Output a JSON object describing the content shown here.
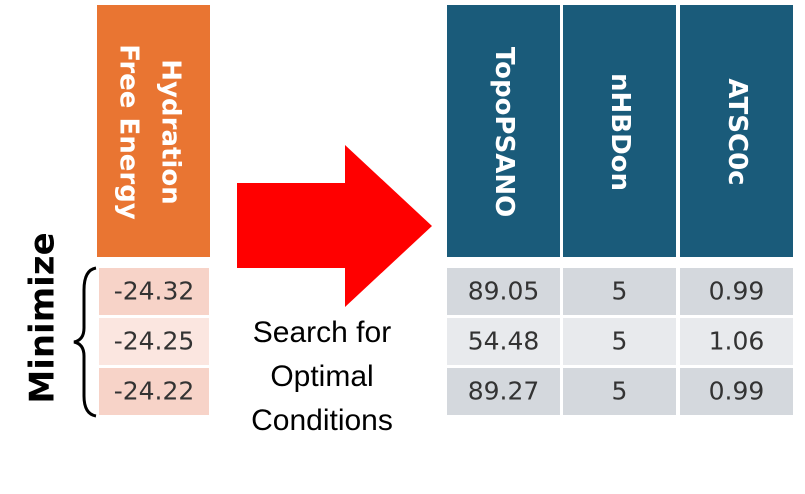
{
  "objective": {
    "header": [
      "Hydration",
      "Free Energy"
    ],
    "values": [
      "-24.32",
      "-24.25",
      "-24.22"
    ],
    "side_label": "Minimize"
  },
  "arrow_text": [
    "Search for",
    "Optimal",
    "Conditions"
  ],
  "table": {
    "headers": [
      "TopoPSANO",
      "nHBDon",
      "ATSC0c"
    ],
    "rows": [
      [
        "89.05",
        "5",
        "0.99"
      ],
      [
        "54.48",
        "5",
        "1.06"
      ],
      [
        "89.27",
        "5",
        "0.99"
      ]
    ]
  }
}
